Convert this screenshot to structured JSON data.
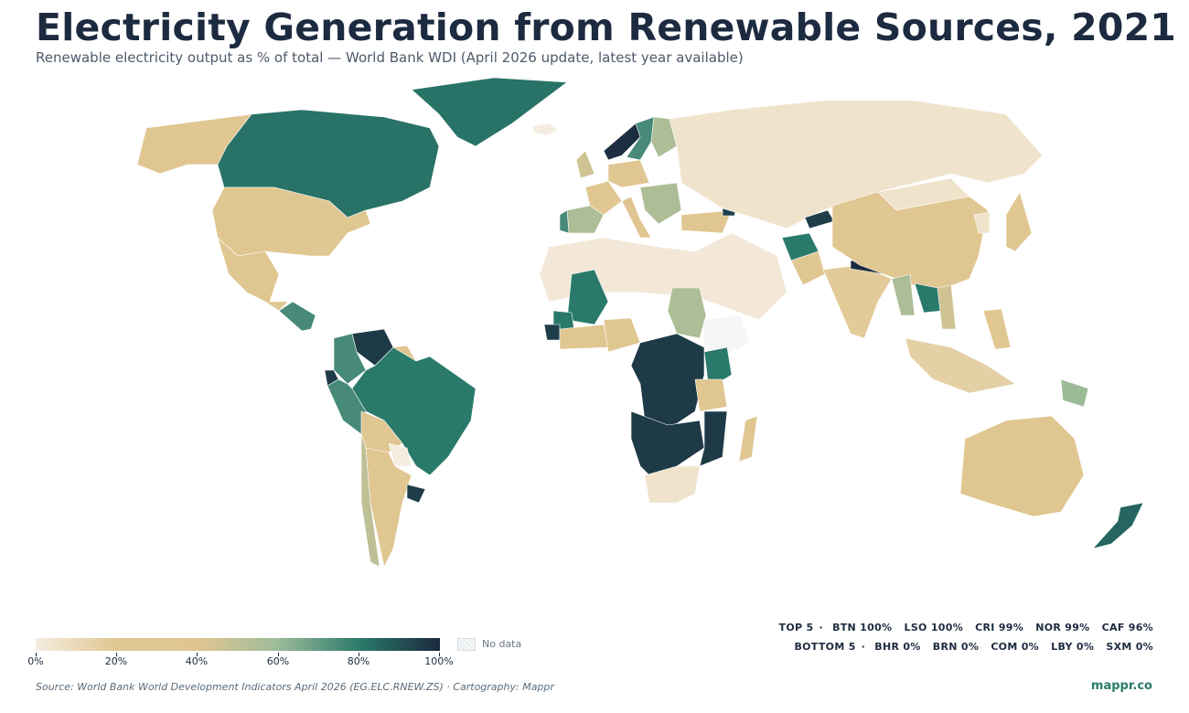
{
  "title": "Electricity Generation from Renewable Sources, 2021",
  "subtitle": "Renewable electricity output as % of total — World Bank WDI (April 2026 update, latest year available)",
  "colors": {
    "scale_0": "#f5ece0",
    "scale_20": "#e0c791",
    "scale_40": "#e0c591",
    "scale_60": "#9cbb99",
    "scale_80": "#2a7a6b",
    "scale_100": "#1b2a3e",
    "no_data": "#f4f6f7",
    "brand": "#2a7a6b"
  },
  "legend": {
    "ticks": [
      "0%",
      "20%",
      "40%",
      "60%",
      "80%",
      "100%"
    ],
    "no_data_label": "No data"
  },
  "top5": {
    "label": "TOP 5",
    "items": [
      "BTN 100%",
      "LSO 100%",
      "CRI 99%",
      "NOR 99%",
      "CAF 96%"
    ]
  },
  "bottom5": {
    "label": "BOTTOM 5",
    "items": [
      "BHR 0%",
      "BRN 0%",
      "COM 0%",
      "LBY 0%",
      "SXM 0%"
    ]
  },
  "source": "Source: World Bank World Development Indicators April 2026 (EG.ELC.RNEW.ZS) · Cartography: Mappr",
  "brand": "mappr.co",
  "regions": [
    {
      "name": "Alaska",
      "value": 30
    },
    {
      "name": "Canada",
      "value": 82
    },
    {
      "name": "Greenland",
      "value": 82
    },
    {
      "name": "Iceland",
      "value": 0
    },
    {
      "name": "United States",
      "value": 20
    },
    {
      "name": "Mexico",
      "value": 22
    },
    {
      "name": "Central America",
      "value": 75
    },
    {
      "name": "Venezuela",
      "value": 96
    },
    {
      "name": "Colombia",
      "value": 75
    },
    {
      "name": "Ecuador",
      "value": 96
    },
    {
      "name": "Brazil",
      "value": 80
    },
    {
      "name": "Peru",
      "value": 75
    },
    {
      "name": "Bolivia",
      "value": 30
    },
    {
      "name": "Paraguay",
      "value": 0
    },
    {
      "name": "Chile",
      "value": 50
    },
    {
      "name": "Argentina",
      "value": 30
    },
    {
      "name": "Uruguay",
      "value": 95
    },
    {
      "name": "Guyana",
      "value": 40
    },
    {
      "name": "Norway",
      "value": 99
    },
    {
      "name": "Sweden",
      "value": 75
    },
    {
      "name": "Finland",
      "value": 55
    },
    {
      "name": "United Kingdom",
      "value": 45
    },
    {
      "name": "Spain",
      "value": 55
    },
    {
      "name": "Portugal",
      "value": 75
    },
    {
      "name": "France",
      "value": 25
    },
    {
      "name": "Germany",
      "value": 35
    },
    {
      "name": "Italy",
      "value": 40
    },
    {
      "name": "Balkans",
      "value": 55
    },
    {
      "name": "Turkey",
      "value": 35
    },
    {
      "name": "Georgia",
      "value": 95
    },
    {
      "name": "North Africa and Middle East",
      "value": 2
    },
    {
      "name": "Mali",
      "value": 80
    },
    {
      "name": "Sudan",
      "value": 55
    },
    {
      "name": "Ethiopia",
      "value": -1
    },
    {
      "name": "Nigeria",
      "value": 22
    },
    {
      "name": "West Africa coast",
      "value": 30
    },
    {
      "name": "Guinea",
      "value": 80
    },
    {
      "name": "Sierra Leone",
      "value": 95
    },
    {
      "name": "Central Africa",
      "value": 96
    },
    {
      "name": "Kenya",
      "value": 80
    },
    {
      "name": "Tanzania",
      "value": 35
    },
    {
      "name": "Southern Africa",
      "value": 96
    },
    {
      "name": "Mozambique",
      "value": 96
    },
    {
      "name": "South Africa",
      "value": 5
    },
    {
      "name": "Madagascar",
      "value": 30
    },
    {
      "name": "Russia and Central Asia",
      "value": 5
    },
    {
      "name": "Afghanistan",
      "value": 80
    },
    {
      "name": "Tajikistan",
      "value": 95
    },
    {
      "name": "Pakistan",
      "value": 30
    },
    {
      "name": "India",
      "value": 18
    },
    {
      "name": "Nepal",
      "value": 100
    },
    {
      "name": "China",
      "value": 28
    },
    {
      "name": "Mongolia",
      "value": 5
    },
    {
      "name": "Korea",
      "value": 5
    },
    {
      "name": "Japan",
      "value": 22
    },
    {
      "name": "Myanmar",
      "value": 55
    },
    {
      "name": "Laos",
      "value": 80
    },
    {
      "name": "Vietnam",
      "value": 45
    },
    {
      "name": "Southeast Asia islands",
      "value": 15
    },
    {
      "name": "Philippines",
      "value": 22
    },
    {
      "name": "Papua New Guinea",
      "value": 60
    },
    {
      "name": "Australia",
      "value": 28
    },
    {
      "name": "New Zealand",
      "value": 85
    }
  ]
}
